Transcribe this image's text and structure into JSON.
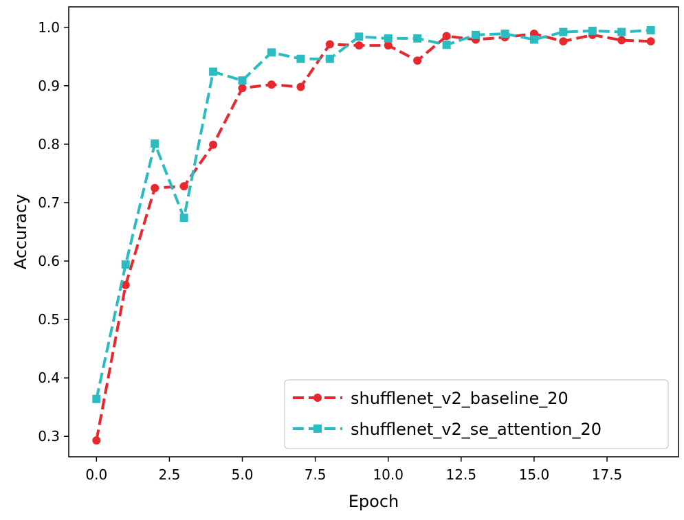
{
  "chart_data": {
    "type": "line",
    "title": "",
    "xlabel": "Epoch",
    "ylabel": "Accuracy",
    "xlim": [
      -0.95,
      19.95
    ],
    "ylim": [
      0.265,
      1.035
    ],
    "xticks": [
      0.0,
      2.5,
      5.0,
      7.5,
      10.0,
      12.5,
      15.0,
      17.5
    ],
    "xtick_labels": [
      "0.0",
      "2.5",
      "5.0",
      "7.5",
      "10.0",
      "12.5",
      "15.0",
      "17.5"
    ],
    "yticks": [
      0.3,
      0.4,
      0.5,
      0.6,
      0.7,
      0.8,
      0.9,
      1.0
    ],
    "ytick_labels": [
      "0.3",
      "0.4",
      "0.5",
      "0.6",
      "0.7",
      "0.8",
      "0.9",
      "1.0"
    ],
    "grid": false,
    "legend_position": "lower-right",
    "x": [
      0,
      1,
      2,
      3,
      4,
      5,
      6,
      7,
      8,
      9,
      10,
      11,
      12,
      13,
      14,
      15,
      16,
      17,
      18,
      19
    ],
    "series": [
      {
        "name": "shufflenet_v2_baseline_20",
        "color": "#e8282e",
        "marker": "circle",
        "values": [
          0.293,
          0.559,
          0.725,
          0.728,
          0.799,
          0.896,
          0.902,
          0.898,
          0.971,
          0.969,
          0.969,
          0.943,
          0.985,
          0.979,
          0.983,
          0.989,
          0.976,
          0.987,
          0.978,
          0.976
        ]
      },
      {
        "name": "shufflenet_v2_se_attention_20",
        "color": "#2bbcc2",
        "marker": "square",
        "values": [
          0.364,
          0.594,
          0.801,
          0.674,
          0.924,
          0.909,
          0.957,
          0.946,
          0.946,
          0.984,
          0.981,
          0.981,
          0.97,
          0.987,
          0.989,
          0.979,
          0.992,
          0.994,
          0.992,
          0.995
        ]
      }
    ]
  }
}
